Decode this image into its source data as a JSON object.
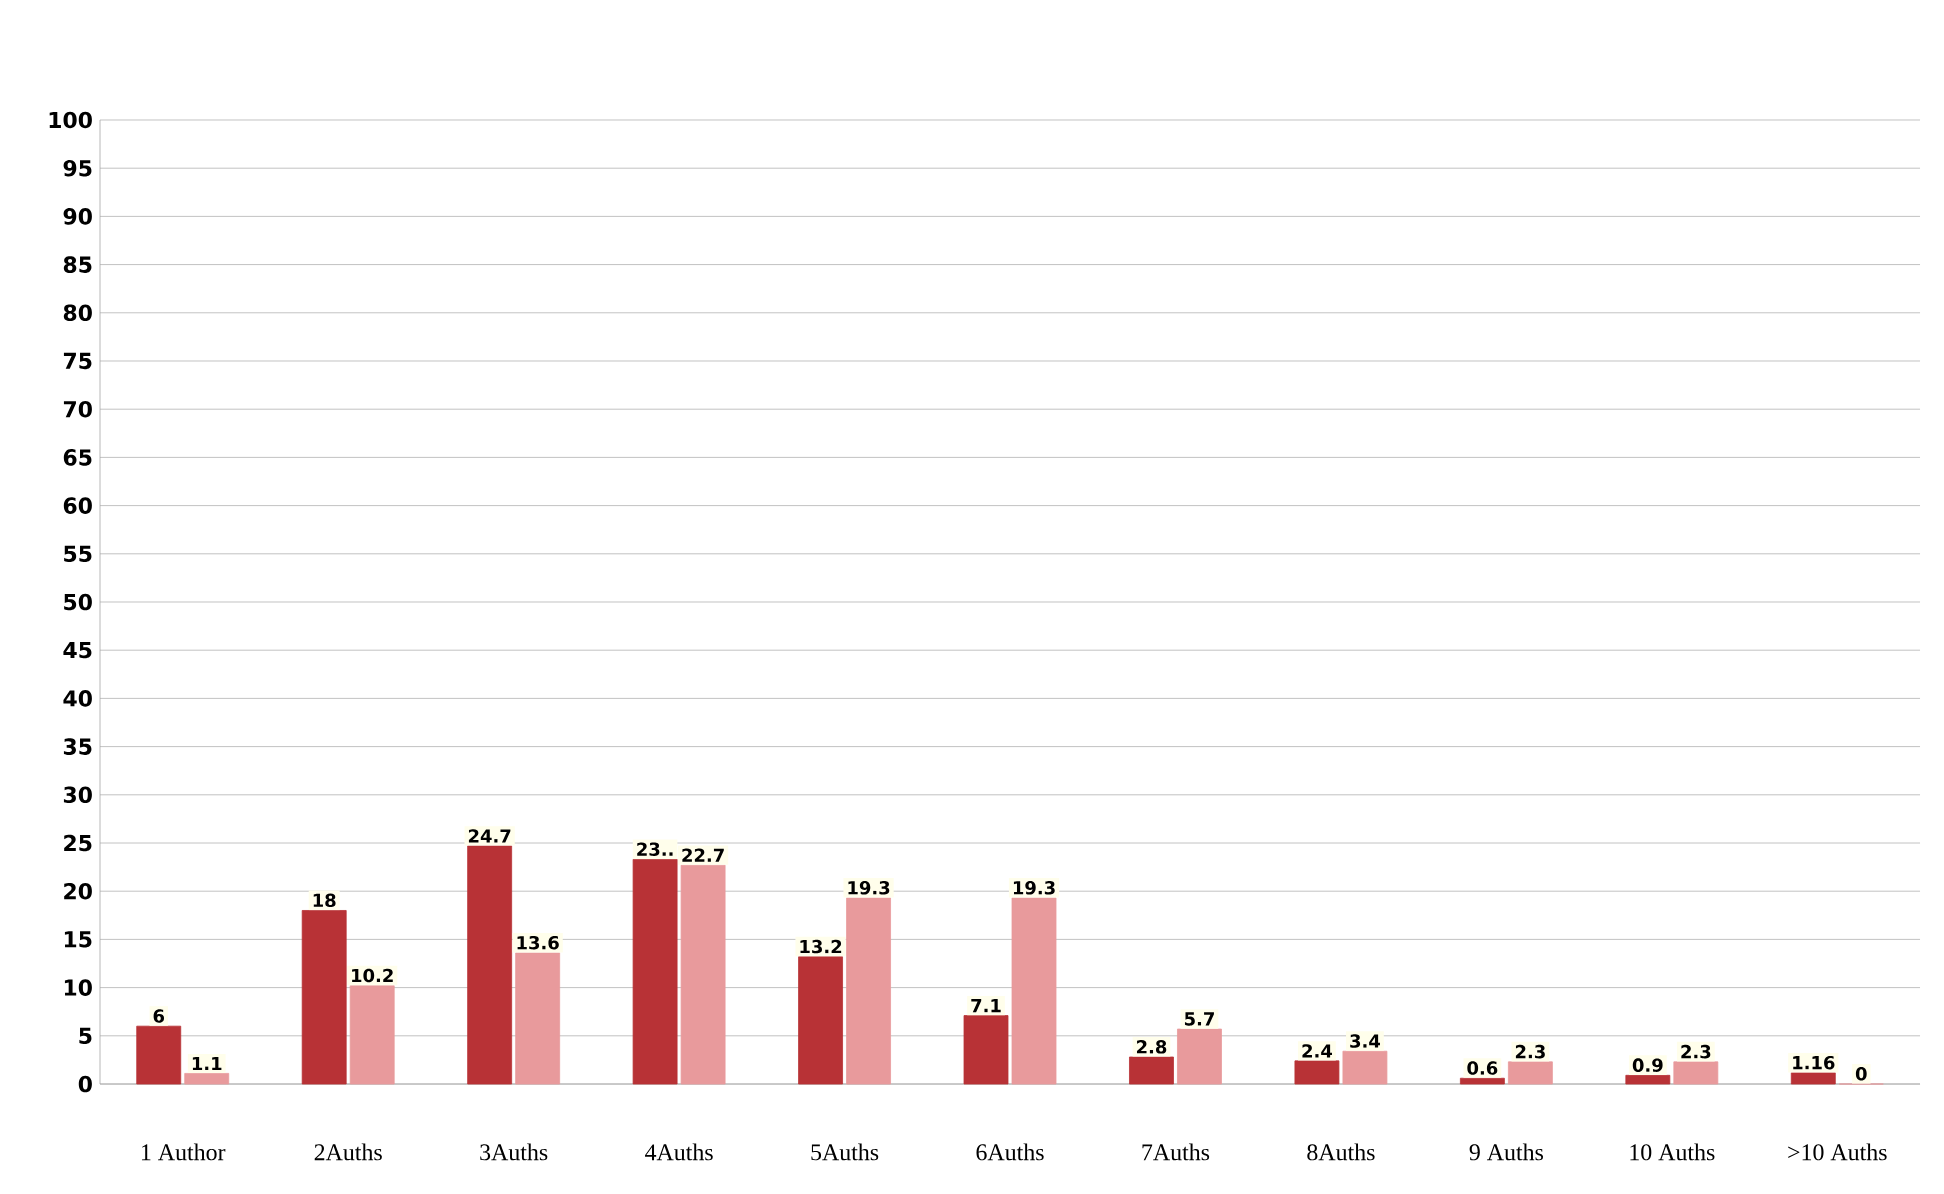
{
  "chart_data": {
    "type": "bar",
    "categories": [
      "1 Author",
      "2Auths",
      "3Auths",
      "4Auths",
      "5Auths",
      "6Auths",
      "7Auths",
      "8Auths",
      "9 Auths",
      "10 Auths",
      ">10 Auths"
    ],
    "series": [
      {
        "color": "#b83236",
        "values": [
          6,
          18,
          24.7,
          23.3,
          13.2,
          7.1,
          2.8,
          2.4,
          0.6,
          0.9,
          1.16
        ],
        "value_labels": [
          "6",
          "18",
          "24.7",
          "23..",
          "13.2",
          "7.1",
          "2.8",
          "2.4",
          "0.6",
          "0.9",
          "1.16"
        ]
      },
      {
        "color": "#e89a9c",
        "values": [
          1.1,
          10.2,
          13.6,
          22.7,
          19.3,
          19.3,
          5.7,
          3.4,
          2.3,
          2.3,
          0
        ],
        "value_labels": [
          "1.1",
          "10.2",
          "13.6",
          "22.7",
          "19.3",
          "19.3",
          "5.7",
          "3.4",
          "2.3",
          "2.3",
          "0"
        ]
      }
    ],
    "ylim": [
      0,
      100
    ],
    "yticks": [
      0,
      5,
      10,
      15,
      20,
      25,
      30,
      35,
      40,
      45,
      50,
      55,
      60,
      65,
      70,
      75,
      80,
      85,
      90,
      95,
      100
    ],
    "grid": "y"
  }
}
